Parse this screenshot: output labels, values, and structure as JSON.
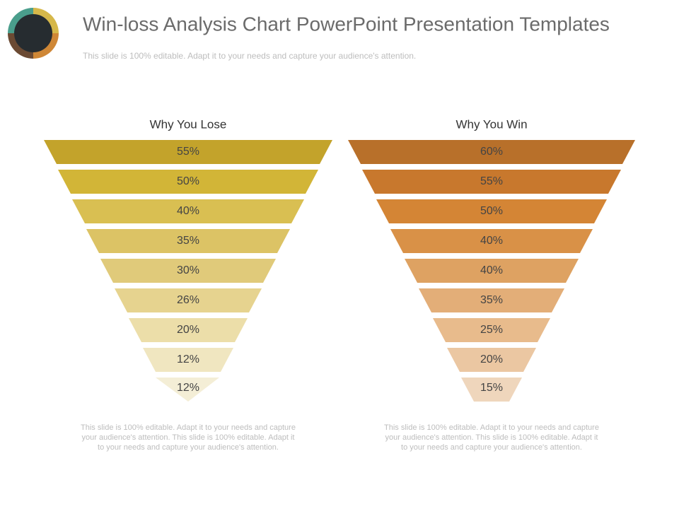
{
  "header": {
    "title": "Win-loss Analysis Chart PowerPoint Presentation Templates",
    "subtitle": "This slide is 100% editable. Adapt it to your needs and capture your audience's attention."
  },
  "funnels": [
    {
      "title": "Why You Lose",
      "levels": [
        "55%",
        "50%",
        "40%",
        "35%",
        "30%",
        "26%",
        "20%",
        "12%",
        "12%"
      ],
      "colors": [
        "#c3a32b",
        "#d2b537",
        "#d9bf52",
        "#dcc365",
        "#e0ca7a",
        "#e6d38f",
        "#ecdea9",
        "#f0e6c0",
        "#f4eed6"
      ],
      "footer": [
        "This slide is 100% editable. Adapt it to your needs and capture",
        "your audience's attention. This slide is 100% editable. Adapt it",
        "to your needs and capture your audience's attention."
      ]
    },
    {
      "title": "Why You Win",
      "levels": [
        "60%",
        "55%",
        "50%",
        "40%",
        "40%",
        "35%",
        "25%",
        "20%",
        "15%"
      ],
      "colors": [
        "#b8702a",
        "#c8782d",
        "#d48535",
        "#d99147",
        "#dea262",
        "#e3ae78",
        "#e8bb8c",
        "#ebc7a2",
        "#efd6bc"
      ],
      "footer": [
        "This slide is 100% editable. Adapt it to your needs and capture",
        "your audience's attention. This slide is 100% editable. Adapt it",
        "to your needs and capture your audience's attention."
      ]
    }
  ]
}
